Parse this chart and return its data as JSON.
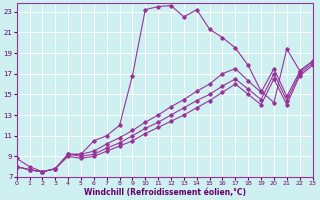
{
  "xlabel": "Windchill (Refroidissement éolien,°C)",
  "bg_color": "#cff0f0",
  "line_color": "#993399",
  "grid_color": "#ffffff",
  "xlim": [
    0,
    23
  ],
  "ylim": [
    7,
    23.8
  ],
  "xticks": [
    0,
    1,
    2,
    3,
    4,
    5,
    6,
    7,
    8,
    9,
    10,
    11,
    12,
    13,
    14,
    15,
    16,
    17,
    18,
    19,
    20,
    21,
    22,
    23
  ],
  "yticks": [
    7,
    9,
    11,
    13,
    15,
    17,
    19,
    21,
    23
  ],
  "lines": [
    {
      "x": [
        0,
        1,
        2,
        3,
        4,
        5,
        6,
        7,
        8,
        9,
        10,
        11,
        12,
        13,
        14,
        15,
        16,
        17,
        18,
        19,
        20,
        21,
        22,
        23
      ],
      "y": [
        8.8,
        8.0,
        7.5,
        7.8,
        9.2,
        9.2,
        10.5,
        11.0,
        12.0,
        16.8,
        23.2,
        23.5,
        23.6,
        22.5,
        23.2,
        21.3,
        20.5,
        19.5,
        17.8,
        15.3,
        14.2,
        19.4,
        17.3,
        18.2
      ]
    },
    {
      "x": [
        0,
        1,
        2,
        3,
        4,
        5,
        6,
        7,
        8,
        9,
        10,
        11,
        12,
        13,
        14,
        15,
        16,
        17,
        18,
        19,
        20,
        21,
        22,
        23
      ],
      "y": [
        8.0,
        7.7,
        7.5,
        7.8,
        9.2,
        9.2,
        9.5,
        10.2,
        10.8,
        11.5,
        12.3,
        13.0,
        13.8,
        14.5,
        15.3,
        16.0,
        17.0,
        17.5,
        16.3,
        15.2,
        17.5,
        14.8,
        17.2,
        18.2
      ]
    },
    {
      "x": [
        0,
        1,
        2,
        3,
        4,
        5,
        6,
        7,
        8,
        9,
        10,
        11,
        12,
        13,
        14,
        15,
        16,
        17,
        18,
        19,
        20,
        21,
        22,
        23
      ],
      "y": [
        8.0,
        7.7,
        7.5,
        7.8,
        9.2,
        9.0,
        9.2,
        9.8,
        10.3,
        11.0,
        11.7,
        12.3,
        13.0,
        13.7,
        14.4,
        15.0,
        15.8,
        16.5,
        15.5,
        14.5,
        17.0,
        14.4,
        17.0,
        18.0
      ]
    },
    {
      "x": [
        0,
        1,
        2,
        3,
        4,
        5,
        6,
        7,
        8,
        9,
        10,
        11,
        12,
        13,
        14,
        15,
        16,
        17,
        18,
        19,
        20,
        21,
        22,
        23
      ],
      "y": [
        8.0,
        7.7,
        7.5,
        7.8,
        9.0,
        8.8,
        9.0,
        9.5,
        10.0,
        10.5,
        11.2,
        11.8,
        12.4,
        13.0,
        13.7,
        14.4,
        15.2,
        16.0,
        15.0,
        14.0,
        16.5,
        14.0,
        16.8,
        17.8
      ]
    }
  ]
}
